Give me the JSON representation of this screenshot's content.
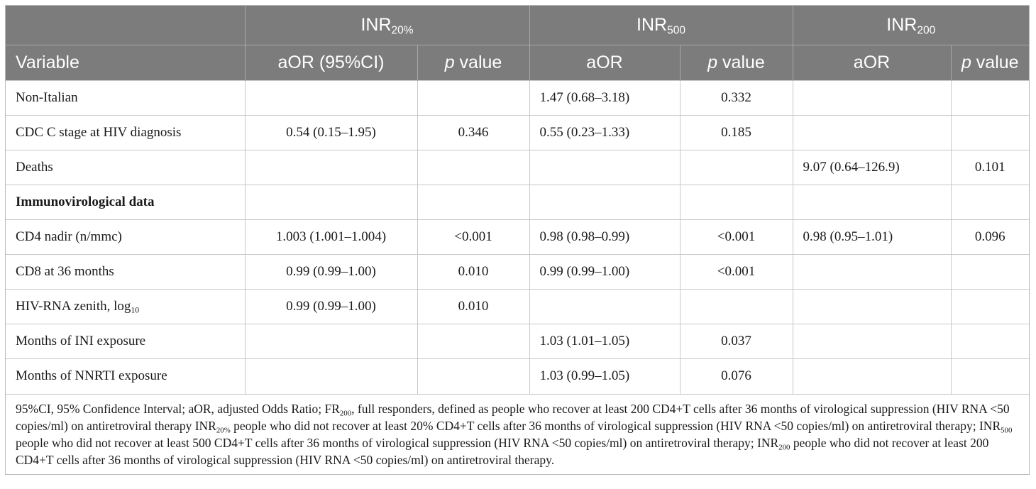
{
  "header": {
    "groups": [
      {
        "base": "INR",
        "sub": "20%"
      },
      {
        "base": "INR",
        "sub": "500"
      },
      {
        "base": "INR",
        "sub": "200"
      }
    ],
    "variable": "Variable",
    "col1": "aOR (95%CI)",
    "pval_italic": "p",
    "pval_rest": " value",
    "col3": "aOR",
    "col5": "aOR"
  },
  "rows": [
    {
      "label": "Non-Italian",
      "v": [
        "",
        "",
        "1.47 (0.68–3.18)",
        "0.332",
        "",
        ""
      ]
    },
    {
      "label": "CDC C stage at HIV diagnosis",
      "v": [
        "0.54 (0.15–1.95)",
        "0.346",
        "0.55 (0.23–1.33)",
        "0.185",
        "",
        ""
      ]
    },
    {
      "label": "Deaths",
      "v": [
        "",
        "",
        "",
        "",
        "9.07 (0.64–126.9)",
        "0.101"
      ]
    },
    {
      "label": "Immunovirological data",
      "v": [
        "",
        "",
        "",
        "",
        "",
        ""
      ]
    },
    {
      "label": "CD4 nadir (n/mmc)",
      "v": [
        "1.003 (1.001–1.004)",
        "<0.001",
        "0.98 (0.98–0.99)",
        "<0.001",
        "0.98 (0.95–1.01)",
        "0.096"
      ]
    },
    {
      "label": "CD8 at 36 months",
      "v": [
        "0.99 (0.99–1.00)",
        "0.010",
        "0.99 (0.99–1.00)",
        "<0.001",
        "",
        ""
      ]
    },
    {
      "label_base": "HIV-RNA zenith, log",
      "label_sub": "10",
      "v": [
        "0.99 (0.99–1.00)",
        "0.010",
        "",
        "",
        "",
        ""
      ]
    },
    {
      "label": "Months of INI exposure",
      "v": [
        "",
        "",
        "1.03 (1.01–1.05)",
        "0.037",
        "",
        ""
      ]
    },
    {
      "label": "Months of NNRTI exposure",
      "v": [
        "",
        "",
        "1.03 (0.99–1.05)",
        "0.076",
        "",
        ""
      ]
    }
  ],
  "footnote": {
    "p1": "95%CI, 95% Confidence Interval; aOR, adjusted Odds Ratio; FR",
    "p1_sub": "200",
    "p2": ", full responders, defined as people who recover at least 200 CD4+T cells after 36 months of virological suppression (HIV RNA <50 copies/ml) on antiretroviral therapy INR",
    "p2_sub": "20%",
    "p3": " people who did not recover at least 20% CD4+T cells after 36 months of virological suppression (HIV RNA <50 copies/ml) on antiretroviral therapy; INR",
    "p3_sub": "500",
    "p4": " people who did not recover at least 500 CD4+T cells after 36 months of virological suppression (HIV RNA <50 copies/ml) on antiretroviral therapy; INR",
    "p4_sub": "200",
    "p5": " people who did not recover at least 200 CD4+T cells after 36 months of virological suppression (HIV RNA <50 copies/ml) on antiretroviral therapy."
  }
}
